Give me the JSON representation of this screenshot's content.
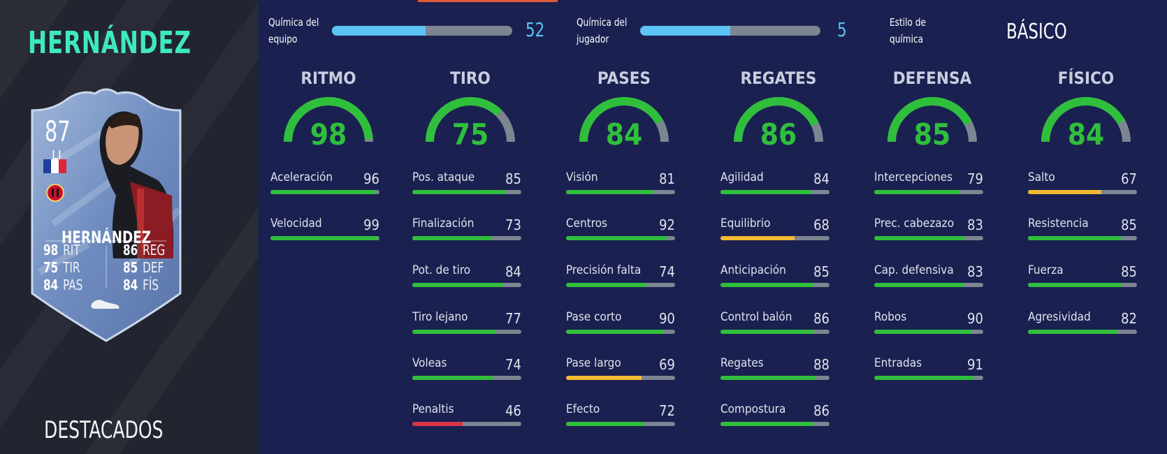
{
  "player": {
    "name": "HERNÁNDEZ",
    "section_title": "DESTACADOS"
  },
  "card": {
    "rating": "87",
    "position": "LI",
    "name": "HERNÁNDEZ",
    "nation": "france-flag-icon",
    "club": "ac-milan-crest-icon",
    "stats_left": [
      {
        "value": "98",
        "label": "RIT"
      },
      {
        "value": "75",
        "label": "TIR"
      },
      {
        "value": "84",
        "label": "PAS"
      }
    ],
    "stats_right": [
      {
        "value": "86",
        "label": "REG"
      },
      {
        "value": "85",
        "label": "DEF"
      },
      {
        "value": "84",
        "label": "FÍS"
      }
    ]
  },
  "chemistry": {
    "team": {
      "label": [
        "Química del",
        "equipo"
      ],
      "value": "52",
      "max": 100
    },
    "player": {
      "label": [
        "Química del",
        "jugador"
      ],
      "value": "5",
      "max": 10
    },
    "style": {
      "label": [
        "Estilo de",
        "química"
      ],
      "value": "BÁSICO"
    }
  },
  "colors": {
    "accent": "#3ee8c0",
    "green": "#2fbf3c",
    "yellow": "#f2b933",
    "red": "#d9344a",
    "chem_blue": "#5bc4f5",
    "track": "#7d8591",
    "panel": "#1a2150"
  },
  "categories": [
    {
      "name": "RITMO",
      "value": 98,
      "stats": [
        {
          "label": "Aceleración",
          "value": 96
        },
        {
          "label": "Velocidad",
          "value": 99
        }
      ]
    },
    {
      "name": "TIRO",
      "value": 75,
      "stats": [
        {
          "label": "Pos. ataque",
          "value": 85
        },
        {
          "label": "Finalización",
          "value": 73
        },
        {
          "label": "Pot. de tiro",
          "value": 84
        },
        {
          "label": "Tiro lejano",
          "value": 77
        },
        {
          "label": "Voleas",
          "value": 74
        },
        {
          "label": "Penaltis",
          "value": 46
        }
      ]
    },
    {
      "name": "PASES",
      "value": 84,
      "stats": [
        {
          "label": "Visión",
          "value": 81
        },
        {
          "label": "Centros",
          "value": 92
        },
        {
          "label": "Precisión falta",
          "value": 74
        },
        {
          "label": "Pase corto",
          "value": 90
        },
        {
          "label": "Pase largo",
          "value": 69
        },
        {
          "label": "Efecto",
          "value": 72
        }
      ]
    },
    {
      "name": "REGATES",
      "value": 86,
      "stats": [
        {
          "label": "Agilidad",
          "value": 84
        },
        {
          "label": "Equilibrio",
          "value": 68
        },
        {
          "label": "Anticipación",
          "value": 85
        },
        {
          "label": "Control balón",
          "value": 86
        },
        {
          "label": "Regates",
          "value": 88
        },
        {
          "label": "Compostura",
          "value": 86
        }
      ]
    },
    {
      "name": "DEFENSA",
      "value": 85,
      "stats": [
        {
          "label": "Intercepciones",
          "value": 79
        },
        {
          "label": "Prec. cabezazo",
          "value": 83
        },
        {
          "label": "Cap. defensiva",
          "value": 83
        },
        {
          "label": "Robos",
          "value": 90
        },
        {
          "label": "Entradas",
          "value": 91
        }
      ]
    },
    {
      "name": "FÍSICO",
      "value": 84,
      "stats": [
        {
          "label": "Salto",
          "value": 67
        },
        {
          "label": "Resistencia",
          "value": 85
        },
        {
          "label": "Fuerza",
          "value": 85
        },
        {
          "label": "Agresividad",
          "value": 82
        }
      ]
    }
  ]
}
